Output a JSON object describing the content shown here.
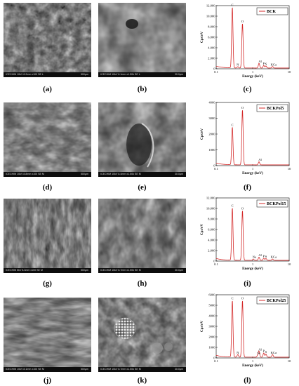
{
  "sem_panels": [
    {
      "label": "(a)",
      "info": "ICECHIM 10kV 8.2mm x100 SE L",
      "scale": "500µm"
    },
    {
      "label": "(b)",
      "info": "ICECHIM 10kV 8.1mm x1.50k SE L",
      "scale": "30.0µm"
    },
    {
      "label": "(d)",
      "info": "ICECHIM 10kV 8.8mm x100 SE M",
      "scale": "500µm"
    },
    {
      "label": "(e)",
      "info": "ICECHIM 10kV 8.4mm x1.50k SE M",
      "scale": "30.0µm"
    },
    {
      "label": "(g)",
      "info": "ICECHIM 5kV 8.3mm x100 SE M",
      "scale": "500µm"
    },
    {
      "label": "(h)",
      "info": "ICECHIM 10kV 8.7mm x1.50k SE M",
      "scale": "30.0µm"
    },
    {
      "label": "(j)",
      "info": "ICECHIM 10kV 8.1mm x100 SE M",
      "scale": "500µm"
    },
    {
      "label": "(k)",
      "info": "ICECHIM 10kV 8.7mm x1.50k SE M",
      "scale": "30.0µm"
    }
  ],
  "chart_data": [
    {
      "type": "line",
      "label": "(c)",
      "legend": "BCK",
      "xlabel": "Energy (keV)",
      "ylabel": "Cps/eV",
      "xscale": "log",
      "xlim": [
        0.1,
        10
      ],
      "ylim": [
        0,
        12000
      ],
      "yticks": [
        "0",
        "2,000",
        "4,000",
        "6,000",
        "8,000",
        "10,000",
        "12,000"
      ],
      "xticks": [
        "0.1",
        "1",
        "10"
      ],
      "peaks": [
        {
          "name": "C",
          "x": 0.277,
          "y": 11600
        },
        {
          "name": "N",
          "x": 0.392,
          "y": 250
        },
        {
          "name": "O",
          "x": 0.525,
          "y": 8500
        },
        {
          "name": "Al",
          "x": 1.49,
          "y": 900
        },
        {
          "name": "P",
          "x": 2.01,
          "y": 500
        },
        {
          "name": "S",
          "x": 2.31,
          "y": 400
        },
        {
          "name": "KCa",
          "x": 3.5,
          "y": 300
        }
      ]
    },
    {
      "type": "line",
      "label": "(f)",
      "legend": "BCKPol5",
      "xlabel": "Energy (keV)",
      "ylabel": "Cps/eV",
      "xscale": "log",
      "xlim": [
        0.1,
        10
      ],
      "ylim": [
        0,
        4000
      ],
      "yticks": [
        "0",
        "1000",
        "2000",
        "3000",
        "4000"
      ],
      "xticks": [
        "0.1",
        "1",
        "10"
      ],
      "peaks": [
        {
          "name": "C",
          "x": 0.277,
          "y": 2400
        },
        {
          "name": "O",
          "x": 0.525,
          "y": 3500
        },
        {
          "name": "Al",
          "x": 1.49,
          "y": 200
        }
      ]
    },
    {
      "type": "line",
      "label": "(i)",
      "legend": "BCKPol15",
      "xlabel": "Energy (keV)",
      "ylabel": "Cps/eV",
      "xscale": "log",
      "xlim": [
        0.1,
        10
      ],
      "ylim": [
        0,
        12000
      ],
      "yticks": [
        "0",
        "2,000",
        "4,000",
        "6,000",
        "8,000",
        "10,000",
        "12,000"
      ],
      "xticks": [
        "0.1",
        "1",
        "10"
      ],
      "peaks": [
        {
          "name": "C",
          "x": 0.277,
          "y": 10000
        },
        {
          "name": "O",
          "x": 0.525,
          "y": 9500
        },
        {
          "name": "Na",
          "x": 1.04,
          "y": 250
        },
        {
          "name": "Al",
          "x": 1.49,
          "y": 600
        },
        {
          "name": "P",
          "x": 2.01,
          "y": 400
        },
        {
          "name": "S",
          "x": 2.31,
          "y": 350
        },
        {
          "name": "KCa",
          "x": 3.5,
          "y": 250
        }
      ]
    },
    {
      "type": "line",
      "label": "(l)",
      "legend": "BCKPol25",
      "xlabel": "Energy (keV)",
      "ylabel": "Cps/eV",
      "xscale": "log",
      "xlim": [
        0.1,
        10
      ],
      "ylim": [
        0,
        6000
      ],
      "yticks": [
        "0",
        "1000",
        "2000",
        "3000",
        "4000",
        "5000",
        "6000"
      ],
      "xticks": [
        "0.1",
        "1",
        "10"
      ],
      "peaks": [
        {
          "name": "C",
          "x": 0.277,
          "y": 5400
        },
        {
          "name": "N",
          "x": 0.392,
          "y": 250
        },
        {
          "name": "O",
          "x": 0.525,
          "y": 5400
        },
        {
          "name": "Se",
          "x": 1.38,
          "y": 200
        },
        {
          "name": "Al",
          "x": 1.49,
          "y": 550
        },
        {
          "name": "P",
          "x": 2.01,
          "y": 400
        },
        {
          "name": "S",
          "x": 2.31,
          "y": 300
        },
        {
          "name": "KCa",
          "x": 3.5,
          "y": 250
        }
      ]
    }
  ]
}
